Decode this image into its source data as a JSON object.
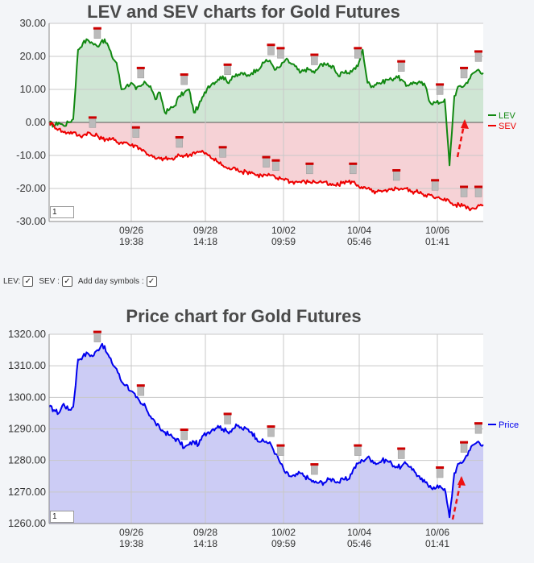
{
  "lev_chart": {
    "title": "LEV and SEV charts for Gold Futures",
    "input_value": "1"
  },
  "price_chart": {
    "title": "Price chart for Gold Futures",
    "input_value": "1"
  },
  "controls": {
    "lev_label": "LEV:",
    "sev_label": "SEV :",
    "day_symbols_label": "Add day symbols :",
    "check_glyph": "✓"
  },
  "colors": {
    "lev": "#118811",
    "sev": "#ee0000",
    "lev_fill": "#cfe6d4",
    "sev_fill": "#f6d2d6",
    "price": "#0000ee",
    "price_fill": "#ccccf5",
    "arrow": "#ee1111"
  },
  "chart_data": [
    {
      "type": "line",
      "title": "LEV and SEV charts for Gold Futures",
      "ylim": [
        -30,
        30
      ],
      "yticks": [
        30,
        20,
        10,
        0,
        -10,
        -20,
        -30
      ],
      "ytick_labels": [
        "30.00",
        "20.00",
        "10.00",
        "0.00",
        "-10.00",
        "-20.00",
        "-30.00"
      ],
      "x_ticks": [
        {
          "date": "09/26",
          "time": "19:38"
        },
        {
          "date": "09/28",
          "time": "14:18"
        },
        {
          "date": "10/02",
          "time": "09:59"
        },
        {
          "date": "10/04",
          "time": "05:46"
        },
        {
          "date": "10/06",
          "time": "01:41"
        }
      ],
      "grid": true,
      "legend": "right",
      "series": [
        {
          "name": "LEV",
          "values": [
            0,
            -1,
            0,
            -1,
            0,
            1,
            22,
            24,
            25,
            24,
            23,
            25,
            24,
            20,
            18,
            10,
            11,
            12,
            10,
            11,
            12,
            11,
            7,
            9,
            3,
            4,
            5,
            8,
            9,
            10,
            3,
            5,
            8,
            11,
            12,
            13,
            14,
            12,
            14,
            14,
            15,
            14,
            15,
            16,
            17,
            19,
            18,
            16,
            17,
            19,
            18,
            17,
            15,
            16,
            16,
            15,
            17,
            18,
            17,
            17,
            14,
            15,
            15,
            16,
            17,
            22,
            12,
            11,
            12,
            12,
            13,
            13,
            14,
            13,
            11,
            12,
            12,
            12,
            11,
            6,
            6,
            6,
            7,
            -13,
            8,
            11,
            11,
            13,
            15,
            16,
            15
          ]
        },
        {
          "name": "SEV",
          "values": [
            0,
            -1,
            -2,
            -3,
            -3,
            -3,
            -4,
            -4,
            -3,
            -4,
            -4,
            -5,
            -5,
            -5,
            -6,
            -6,
            -6,
            -7,
            -7,
            -8,
            -9,
            -10,
            -11,
            -11,
            -11,
            -11,
            -11,
            -10,
            -10,
            -10,
            -9,
            -9,
            -9,
            -10,
            -11,
            -12,
            -13,
            -14,
            -14,
            -14,
            -15,
            -15,
            -15,
            -16,
            -16,
            -16,
            -16,
            -17,
            -17,
            -17,
            -18,
            -18,
            -18,
            -18,
            -18,
            -18,
            -18,
            -18,
            -19,
            -19,
            -19,
            -18,
            -18,
            -18,
            -19,
            -20,
            -20,
            -21,
            -21,
            -21,
            -21,
            -20,
            -20,
            -20,
            -20,
            -21,
            -21,
            -21,
            -22,
            -22,
            -23,
            -23,
            -23,
            -24,
            -25,
            -25,
            -25,
            -26,
            -26,
            -25,
            -25
          ]
        }
      ]
    },
    {
      "type": "line",
      "title": "Price chart for Gold Futures",
      "ylim": [
        1260,
        1320
      ],
      "yticks": [
        1320,
        1310,
        1300,
        1290,
        1280,
        1270,
        1260
      ],
      "ytick_labels": [
        "1320.00",
        "1310.00",
        "1300.00",
        "1290.00",
        "1280.00",
        "1270.00",
        "1260.00"
      ],
      "x_ticks": [
        {
          "date": "09/26",
          "time": "19:38"
        },
        {
          "date": "09/28",
          "time": "14:18"
        },
        {
          "date": "10/02",
          "time": "09:59"
        },
        {
          "date": "10/04",
          "time": "05:46"
        },
        {
          "date": "10/06",
          "time": "01:41"
        }
      ],
      "grid": true,
      "legend": "right",
      "series": [
        {
          "name": "Price",
          "values": [
            1297,
            1296,
            1295,
            1298,
            1296,
            1297,
            1312,
            1313,
            1314,
            1313,
            1315,
            1317,
            1314,
            1311,
            1309,
            1305,
            1304,
            1302,
            1300,
            1298,
            1297,
            1294,
            1292,
            1290,
            1289,
            1288,
            1287,
            1286,
            1284,
            1285,
            1286,
            1285,
            1288,
            1289,
            1290,
            1291,
            1290,
            1289,
            1290,
            1291,
            1290,
            1290,
            1289,
            1287,
            1286,
            1286,
            1285,
            1282,
            1279,
            1276,
            1275,
            1275,
            1276,
            1275,
            1274,
            1273,
            1273,
            1273,
            1274,
            1274,
            1273,
            1274,
            1274,
            1277,
            1279,
            1280,
            1281,
            1280,
            1279,
            1280,
            1280,
            1279,
            1278,
            1278,
            1279,
            1278,
            1276,
            1274,
            1273,
            1272,
            1271,
            1272,
            1271,
            1262,
            1276,
            1279,
            1280,
            1283,
            1285,
            1286,
            1285
          ]
        }
      ]
    }
  ]
}
